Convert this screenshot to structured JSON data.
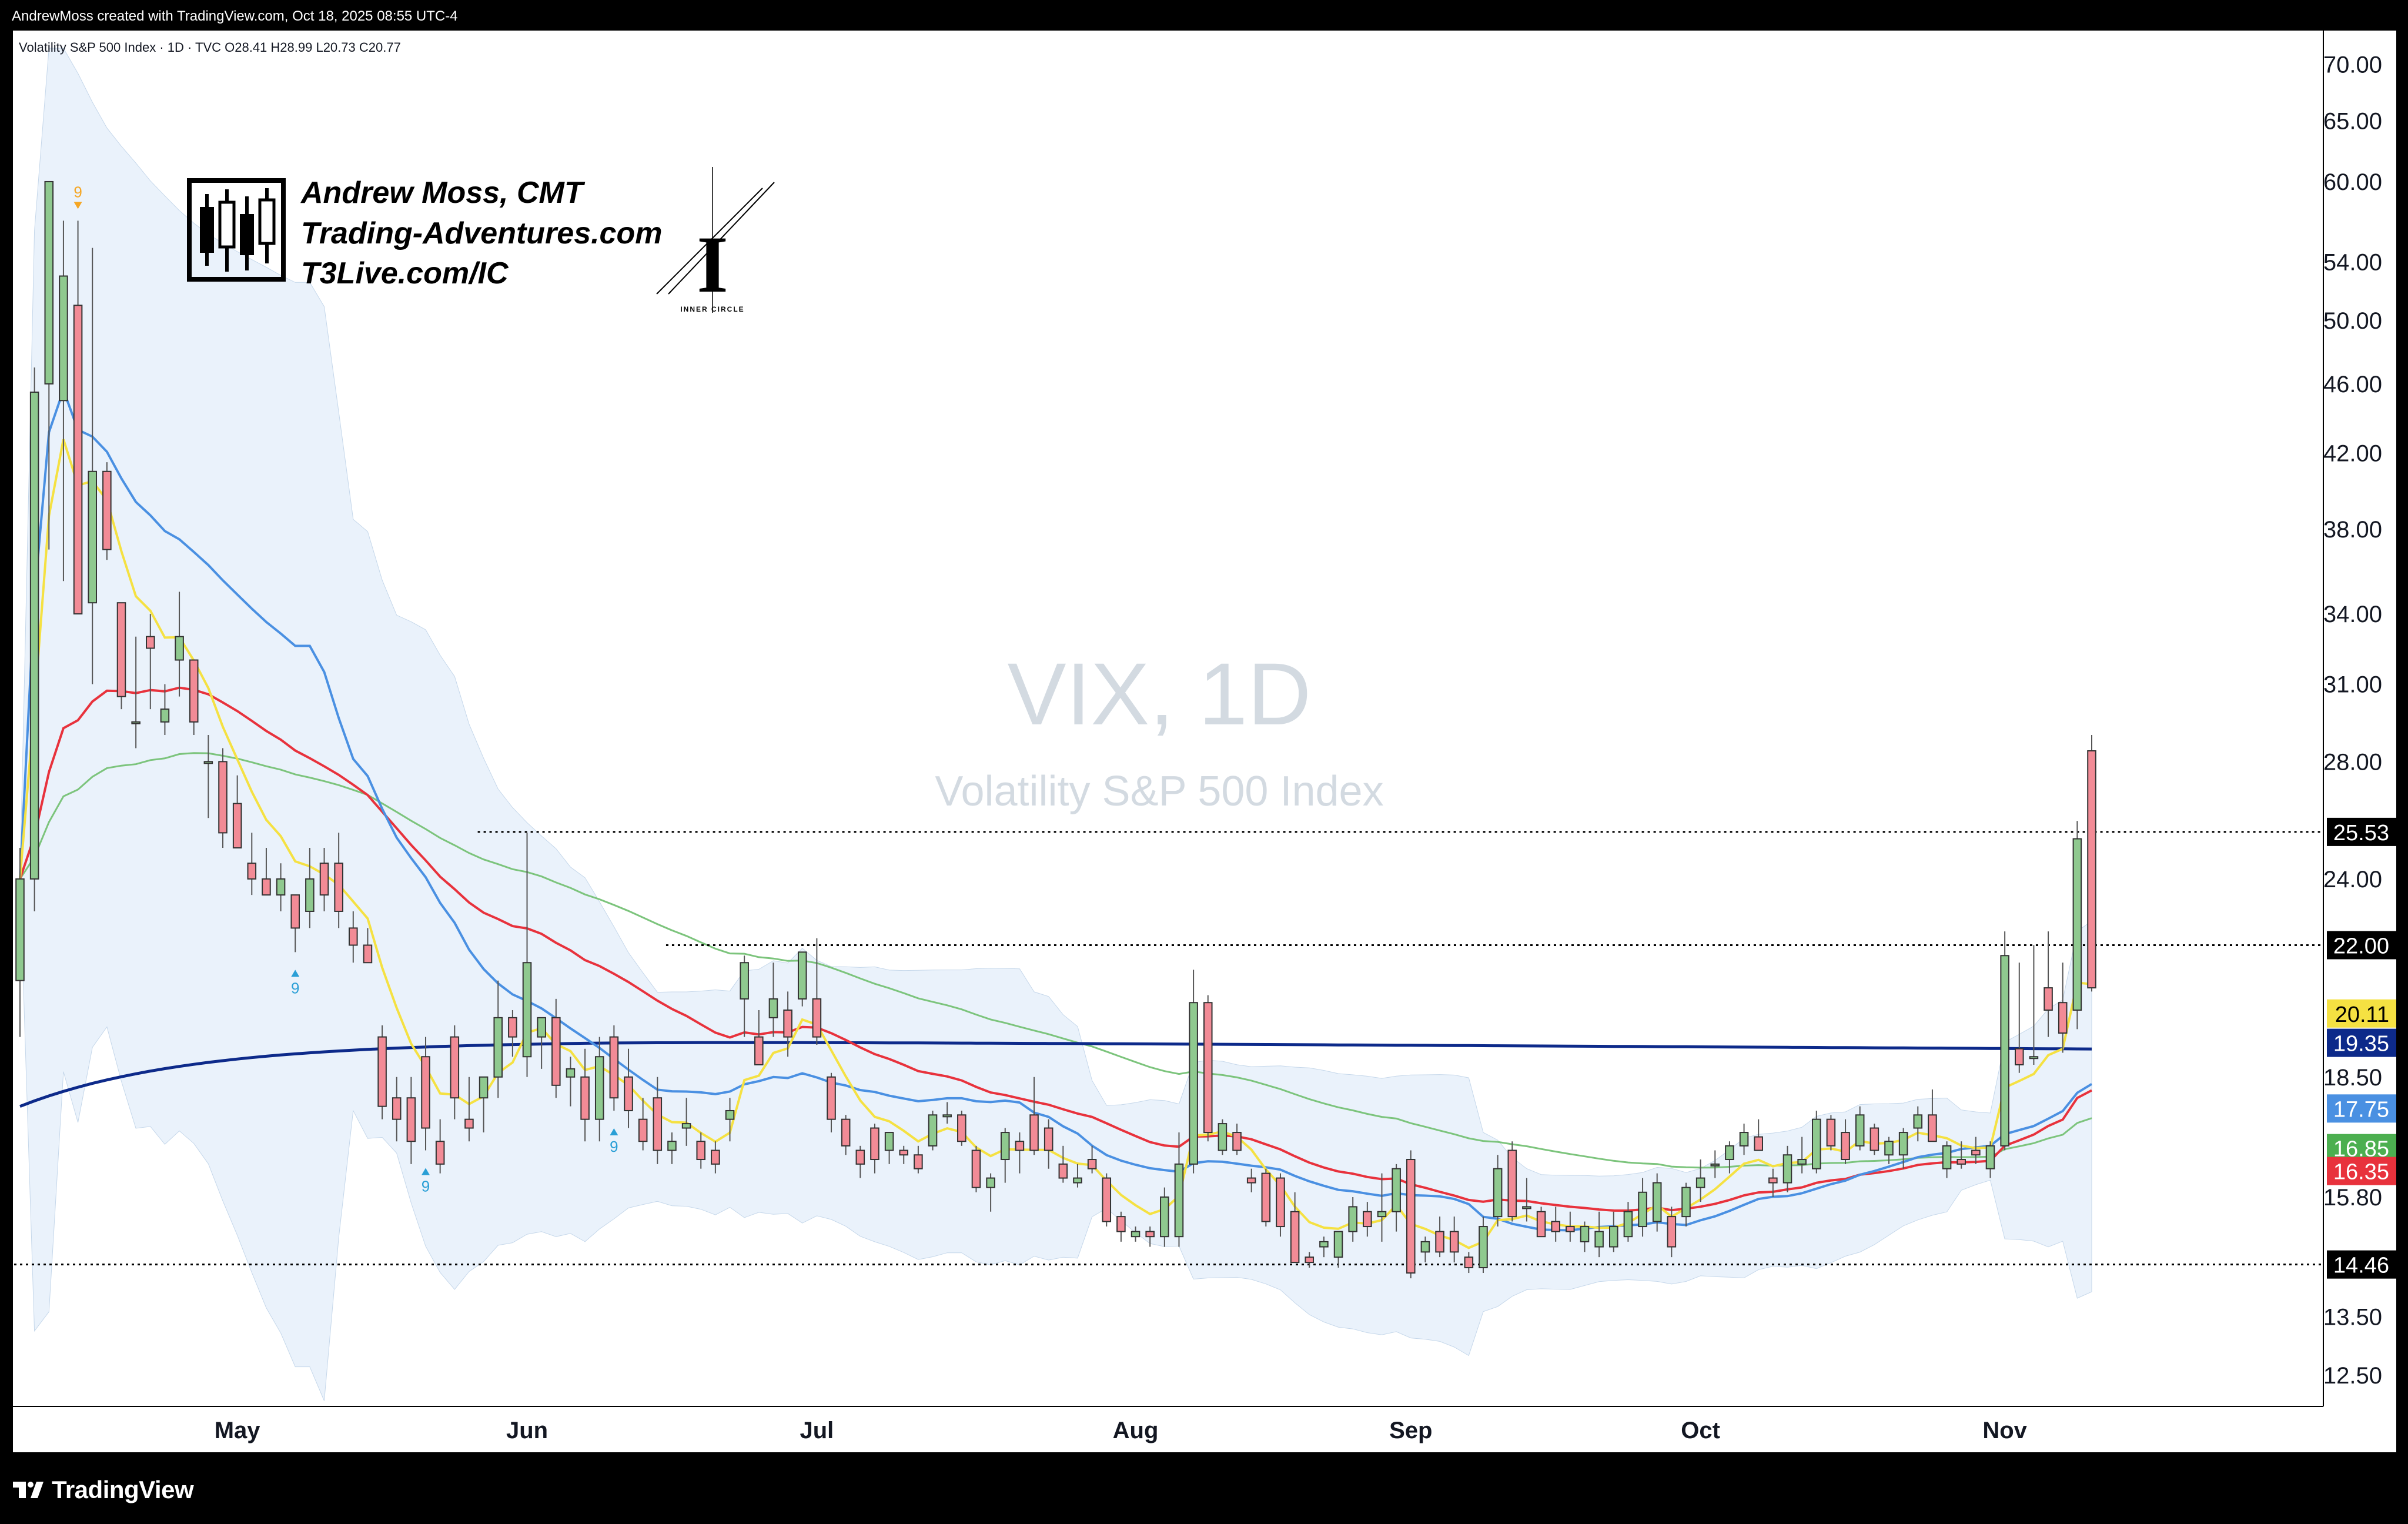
{
  "header": {
    "caption": "AndrewMoss created with TradingView.com, Oct 18, 2025 08:55 UTC-4"
  },
  "legend": {
    "line": "Volatility S&P 500 Index · 1D · TVC  O28.41  H28.99  L20.73  C20.77"
  },
  "watermark": {
    "symbol": "VIX, 1D",
    "name": "Volatility S&P 500 Index"
  },
  "branding": {
    "line1": "Andrew Moss, CMT",
    "line2": "Trading-Adventures.com",
    "line3": "T3Live.com/IC",
    "inner_circle_letter": "I",
    "inner_circle_label": "INNER CIRCLE"
  },
  "footer": {
    "brand": "TradingView"
  },
  "colors": {
    "up_candle": "#8fc98f",
    "down_candle": "#f28b96",
    "ema_yellow": "#f5e142",
    "ma_blue": "#4a90e2",
    "ma_red": "#e8323c",
    "ma_green": "#7cc47c",
    "ma_navy": "#0d2a8a",
    "band_fill": "#eaf2fb",
    "seq_up": "#2a9fd6",
    "seq_down": "#f5a623"
  },
  "chart_data": {
    "type": "candlestick",
    "symbol": "VIX",
    "timeframe": "1D",
    "scale": "log",
    "ylim": [
      12.0,
      71.5
    ],
    "y_ticks": [
      "70.00",
      "65.00",
      "60.00",
      "54.00",
      "50.00",
      "46.00",
      "42.00",
      "38.00",
      "34.00",
      "31.00",
      "28.00",
      "24.00",
      "18.50",
      "15.80",
      "13.50",
      "12.50"
    ],
    "x_labels": [
      {
        "label": "May",
        "index": 15
      },
      {
        "label": "Jun",
        "index": 35
      },
      {
        "label": "Jul",
        "index": 55
      },
      {
        "label": "Aug",
        "index": 77
      },
      {
        "label": "Sep",
        "index": 96
      },
      {
        "label": "Oct",
        "index": 116
      },
      {
        "label": "Nov",
        "index": 137
      }
    ],
    "price_tags": [
      {
        "value": "25.53",
        "bg": "#000000",
        "fg": "#ffffff"
      },
      {
        "value": "22.00",
        "bg": "#000000",
        "fg": "#ffffff"
      },
      {
        "value": "20.11",
        "bg": "#f5e142",
        "fg": "#000000"
      },
      {
        "value": "19.35",
        "bg": "#0d2a8a",
        "fg": "#ffffff"
      },
      {
        "value": "17.75",
        "bg": "#4a90e2",
        "fg": "#ffffff"
      },
      {
        "value": "16.85",
        "bg": "#4caf50",
        "fg": "#ffffff"
      },
      {
        "value": "16.35",
        "bg": "#e8323c",
        "fg": "#ffffff"
      },
      {
        "value": "14.46",
        "bg": "#000000",
        "fg": "#ffffff"
      }
    ],
    "horizontal_levels": [
      {
        "value": 25.53,
        "from_index": 32
      },
      {
        "value": 22.0,
        "from_index": 45
      },
      {
        "value": 14.46,
        "from_index": 0
      }
    ],
    "sequential_marks": [
      {
        "index": 4,
        "label": "9",
        "dir": "down"
      },
      {
        "index": 19,
        "label": "9",
        "dir": "up"
      },
      {
        "index": 28,
        "label": "9",
        "dir": "up"
      },
      {
        "index": 41,
        "label": "9",
        "dir": "up"
      }
    ],
    "candles": [
      {
        "o": 21.0,
        "h": 25.0,
        "l": 19.5,
        "c": 24.0
      },
      {
        "o": 24.0,
        "h": 47.0,
        "l": 23.0,
        "c": 45.5
      },
      {
        "o": 46.0,
        "h": 60.0,
        "l": 37.0,
        "c": 60.0
      },
      {
        "o": 45.0,
        "h": 57.0,
        "l": 35.5,
        "c": 53.0
      },
      {
        "o": 51.0,
        "h": 57.0,
        "l": 34.0,
        "c": 34.0
      },
      {
        "o": 34.5,
        "h": 55.0,
        "l": 31.0,
        "c": 41.0
      },
      {
        "o": 41.0,
        "h": 41.5,
        "l": 36.5,
        "c": 37.0
      },
      {
        "o": 34.5,
        "h": 34.5,
        "l": 30.0,
        "c": 30.5
      },
      {
        "o": 29.5,
        "h": 33.0,
        "l": 28.5,
        "c": 29.5
      },
      {
        "o": 33.0,
        "h": 34.0,
        "l": 30.0,
        "c": 32.5
      },
      {
        "o": 29.5,
        "h": 31.0,
        "l": 29.0,
        "c": 30.0
      },
      {
        "o": 32.0,
        "h": 35.0,
        "l": 30.5,
        "c": 33.0
      },
      {
        "o": 32.0,
        "h": 32.0,
        "l": 29.0,
        "c": 29.5
      },
      {
        "o": 28.0,
        "h": 29.0,
        "l": 26.0,
        "c": 28.0
      },
      {
        "o": 28.0,
        "h": 28.5,
        "l": 25.0,
        "c": 25.5
      },
      {
        "o": 26.5,
        "h": 27.5,
        "l": 25.0,
        "c": 25.0
      },
      {
        "o": 24.5,
        "h": 25.5,
        "l": 23.5,
        "c": 24.0
      },
      {
        "o": 24.0,
        "h": 25.0,
        "l": 23.5,
        "c": 23.5
      },
      {
        "o": 23.5,
        "h": 24.5,
        "l": 23.0,
        "c": 24.0
      },
      {
        "o": 23.5,
        "h": 23.5,
        "l": 21.8,
        "c": 22.5
      },
      {
        "o": 23.0,
        "h": 25.0,
        "l": 22.5,
        "c": 24.0
      },
      {
        "o": 24.5,
        "h": 25.0,
        "l": 23.0,
        "c": 23.5
      },
      {
        "o": 24.5,
        "h": 25.5,
        "l": 22.5,
        "c": 23.0
      },
      {
        "o": 22.5,
        "h": 23.0,
        "l": 21.5,
        "c": 22.0
      },
      {
        "o": 22.0,
        "h": 22.5,
        "l": 21.5,
        "c": 21.5
      },
      {
        "o": 19.5,
        "h": 19.8,
        "l": 17.5,
        "c": 17.8
      },
      {
        "o": 18.0,
        "h": 18.5,
        "l": 17.0,
        "c": 17.5
      },
      {
        "o": 18.0,
        "h": 18.5,
        "l": 16.5,
        "c": 17.0
      },
      {
        "o": 19.0,
        "h": 19.5,
        "l": 16.8,
        "c": 17.3
      },
      {
        "o": 17.0,
        "h": 17.5,
        "l": 16.3,
        "c": 16.5
      },
      {
        "o": 19.5,
        "h": 19.8,
        "l": 17.5,
        "c": 18.0
      },
      {
        "o": 17.5,
        "h": 18.5,
        "l": 17.0,
        "c": 17.3
      },
      {
        "o": 18.0,
        "h": 18.5,
        "l": 17.2,
        "c": 18.5
      },
      {
        "o": 18.5,
        "h": 21.0,
        "l": 18.0,
        "c": 20.0
      },
      {
        "o": 20.0,
        "h": 20.2,
        "l": 19.0,
        "c": 19.5
      },
      {
        "o": 19.0,
        "h": 25.5,
        "l": 18.5,
        "c": 21.5
      },
      {
        "o": 19.5,
        "h": 20.0,
        "l": 18.7,
        "c": 20.0
      },
      {
        "o": 20.0,
        "h": 20.5,
        "l": 18.0,
        "c": 18.3
      },
      {
        "o": 18.5,
        "h": 19.0,
        "l": 17.8,
        "c": 18.7
      },
      {
        "o": 18.5,
        "h": 19.2,
        "l": 17.0,
        "c": 17.5
      },
      {
        "o": 17.5,
        "h": 19.5,
        "l": 17.0,
        "c": 19.0
      },
      {
        "o": 19.5,
        "h": 19.8,
        "l": 17.7,
        "c": 18.0
      },
      {
        "o": 18.5,
        "h": 19.2,
        "l": 17.3,
        "c": 17.7
      },
      {
        "o": 17.5,
        "h": 18.0,
        "l": 16.8,
        "c": 17.0
      },
      {
        "o": 18.0,
        "h": 18.5,
        "l": 16.5,
        "c": 16.8
      },
      {
        "o": 16.8,
        "h": 17.2,
        "l": 16.5,
        "c": 17.0
      },
      {
        "o": 17.3,
        "h": 18.0,
        "l": 16.9,
        "c": 17.4
      },
      {
        "o": 17.0,
        "h": 17.2,
        "l": 16.4,
        "c": 16.6
      },
      {
        "o": 16.8,
        "h": 17.0,
        "l": 16.3,
        "c": 16.5
      },
      {
        "o": 17.5,
        "h": 18.0,
        "l": 17.0,
        "c": 17.7
      },
      {
        "o": 20.5,
        "h": 21.7,
        "l": 19.5,
        "c": 21.5
      },
      {
        "o": 19.5,
        "h": 20.2,
        "l": 18.8,
        "c": 18.8
      },
      {
        "o": 20.0,
        "h": 21.5,
        "l": 19.5,
        "c": 20.5
      },
      {
        "o": 20.2,
        "h": 20.7,
        "l": 19.0,
        "c": 19.5
      },
      {
        "o": 20.5,
        "h": 21.8,
        "l": 20.3,
        "c": 21.8
      },
      {
        "o": 20.5,
        "h": 22.2,
        "l": 19.3,
        "c": 19.5
      },
      {
        "o": 18.5,
        "h": 18.6,
        "l": 17.2,
        "c": 17.5
      },
      {
        "o": 17.5,
        "h": 17.6,
        "l": 16.7,
        "c": 16.9
      },
      {
        "o": 16.8,
        "h": 16.9,
        "l": 16.2,
        "c": 16.5
      },
      {
        "o": 17.3,
        "h": 17.4,
        "l": 16.3,
        "c": 16.6
      },
      {
        "o": 16.8,
        "h": 17.2,
        "l": 16.5,
        "c": 17.2
      },
      {
        "o": 16.8,
        "h": 16.9,
        "l": 16.5,
        "c": 16.7
      },
      {
        "o": 16.7,
        "h": 16.9,
        "l": 16.3,
        "c": 16.4
      },
      {
        "o": 16.9,
        "h": 17.7,
        "l": 16.8,
        "c": 17.6
      },
      {
        "o": 17.6,
        "h": 17.9,
        "l": 17.4,
        "c": 17.6
      },
      {
        "o": 17.6,
        "h": 17.7,
        "l": 16.9,
        "c": 17.0
      },
      {
        "o": 16.8,
        "h": 16.9,
        "l": 15.9,
        "c": 16.0
      },
      {
        "o": 16.0,
        "h": 16.3,
        "l": 15.5,
        "c": 16.2
      },
      {
        "o": 16.6,
        "h": 17.3,
        "l": 16.1,
        "c": 17.2
      },
      {
        "o": 17.0,
        "h": 17.2,
        "l": 16.3,
        "c": 16.8
      },
      {
        "o": 17.6,
        "h": 18.5,
        "l": 16.7,
        "c": 16.8
      },
      {
        "o": 17.3,
        "h": 17.5,
        "l": 16.4,
        "c": 16.8
      },
      {
        "o": 16.5,
        "h": 16.9,
        "l": 16.1,
        "c": 16.2
      },
      {
        "o": 16.1,
        "h": 16.5,
        "l": 16.0,
        "c": 16.2
      },
      {
        "o": 16.6,
        "h": 16.9,
        "l": 16.3,
        "c": 16.4
      },
      {
        "o": 16.2,
        "h": 16.3,
        "l": 15.2,
        "c": 15.3
      },
      {
        "o": 15.4,
        "h": 15.5,
        "l": 14.9,
        "c": 15.1
      },
      {
        "o": 15.0,
        "h": 15.2,
        "l": 14.9,
        "c": 15.1
      },
      {
        "o": 15.1,
        "h": 15.2,
        "l": 14.8,
        "c": 15.0
      },
      {
        "o": 15.0,
        "h": 16.0,
        "l": 14.8,
        "c": 15.8
      },
      {
        "o": 15.0,
        "h": 17.2,
        "l": 14.8,
        "c": 16.5
      },
      {
        "o": 16.5,
        "h": 21.3,
        "l": 16.3,
        "c": 20.4
      },
      {
        "o": 20.4,
        "h": 20.6,
        "l": 17.0,
        "c": 17.2
      },
      {
        "o": 16.8,
        "h": 17.5,
        "l": 16.7,
        "c": 17.4
      },
      {
        "o": 17.2,
        "h": 17.4,
        "l": 16.7,
        "c": 16.8
      },
      {
        "o": 16.2,
        "h": 16.4,
        "l": 15.9,
        "c": 16.1
      },
      {
        "o": 16.3,
        "h": 16.4,
        "l": 15.2,
        "c": 15.3
      },
      {
        "o": 16.2,
        "h": 16.3,
        "l": 15.0,
        "c": 15.2
      },
      {
        "o": 15.5,
        "h": 15.9,
        "l": 14.5,
        "c": 14.5
      },
      {
        "o": 14.6,
        "h": 14.7,
        "l": 14.4,
        "c": 14.5
      },
      {
        "o": 14.8,
        "h": 15.0,
        "l": 14.6,
        "c": 14.9
      },
      {
        "o": 14.6,
        "h": 15.1,
        "l": 14.4,
        "c": 15.1
      },
      {
        "o": 15.1,
        "h": 15.8,
        "l": 14.9,
        "c": 15.6
      },
      {
        "o": 15.5,
        "h": 15.7,
        "l": 15.0,
        "c": 15.2
      },
      {
        "o": 15.4,
        "h": 16.3,
        "l": 14.9,
        "c": 15.5
      },
      {
        "o": 15.5,
        "h": 16.5,
        "l": 15.1,
        "c": 16.4
      },
      {
        "o": 16.6,
        "h": 16.8,
        "l": 14.2,
        "c": 14.3
      },
      {
        "o": 14.7,
        "h": 15.0,
        "l": 14.5,
        "c": 14.9
      },
      {
        "o": 15.1,
        "h": 15.4,
        "l": 14.6,
        "c": 14.7
      },
      {
        "o": 15.1,
        "h": 15.4,
        "l": 14.5,
        "c": 14.7
      },
      {
        "o": 14.6,
        "h": 14.7,
        "l": 14.3,
        "c": 14.4
      },
      {
        "o": 14.4,
        "h": 15.4,
        "l": 14.3,
        "c": 15.2
      },
      {
        "o": 15.4,
        "h": 16.7,
        "l": 15.2,
        "c": 16.4
      },
      {
        "o": 16.8,
        "h": 17.0,
        "l": 15.3,
        "c": 15.4
      },
      {
        "o": 15.6,
        "h": 16.2,
        "l": 15.3,
        "c": 15.6
      },
      {
        "o": 15.5,
        "h": 15.6,
        "l": 15.0,
        "c": 15.0
      },
      {
        "o": 15.3,
        "h": 15.6,
        "l": 14.9,
        "c": 15.1
      },
      {
        "o": 15.2,
        "h": 15.5,
        "l": 14.9,
        "c": 15.1
      },
      {
        "o": 14.9,
        "h": 15.3,
        "l": 14.7,
        "c": 15.2
      },
      {
        "o": 14.8,
        "h": 15.5,
        "l": 14.6,
        "c": 15.1
      },
      {
        "o": 14.8,
        "h": 15.5,
        "l": 14.7,
        "c": 15.2
      },
      {
        "o": 15.0,
        "h": 15.7,
        "l": 14.9,
        "c": 15.5
      },
      {
        "o": 15.2,
        "h": 16.2,
        "l": 15.0,
        "c": 15.9
      },
      {
        "o": 15.3,
        "h": 16.3,
        "l": 15.1,
        "c": 16.1
      },
      {
        "o": 15.4,
        "h": 15.6,
        "l": 14.6,
        "c": 14.8
      },
      {
        "o": 15.4,
        "h": 16.1,
        "l": 15.2,
        "c": 16.0
      },
      {
        "o": 16.0,
        "h": 16.6,
        "l": 15.7,
        "c": 16.2
      },
      {
        "o": 16.5,
        "h": 16.8,
        "l": 16.2,
        "c": 16.5
      },
      {
        "o": 16.6,
        "h": 17.0,
        "l": 16.3,
        "c": 16.9
      },
      {
        "o": 16.9,
        "h": 17.4,
        "l": 16.7,
        "c": 17.2
      },
      {
        "o": 17.1,
        "h": 17.5,
        "l": 16.8,
        "c": 16.8
      },
      {
        "o": 16.2,
        "h": 16.4,
        "l": 15.8,
        "c": 16.1
      },
      {
        "o": 16.1,
        "h": 16.9,
        "l": 15.9,
        "c": 16.7
      },
      {
        "o": 16.5,
        "h": 17.1,
        "l": 16.3,
        "c": 16.6
      },
      {
        "o": 16.4,
        "h": 17.7,
        "l": 16.3,
        "c": 17.5
      },
      {
        "o": 17.5,
        "h": 17.6,
        "l": 16.8,
        "c": 16.9
      },
      {
        "o": 17.2,
        "h": 17.5,
        "l": 16.5,
        "c": 16.6
      },
      {
        "o": 16.9,
        "h": 17.8,
        "l": 16.8,
        "c": 17.6
      },
      {
        "o": 17.3,
        "h": 17.4,
        "l": 16.7,
        "c": 16.8
      },
      {
        "o": 16.7,
        "h": 17.1,
        "l": 16.5,
        "c": 17.0
      },
      {
        "o": 16.7,
        "h": 17.3,
        "l": 16.4,
        "c": 17.2
      },
      {
        "o": 17.3,
        "h": 17.8,
        "l": 17.0,
        "c": 17.6
      },
      {
        "o": 17.6,
        "h": 18.2,
        "l": 17.4,
        "c": 17.0
      },
      {
        "o": 16.4,
        "h": 17.0,
        "l": 16.2,
        "c": 16.9
      },
      {
        "o": 16.6,
        "h": 17.0,
        "l": 16.4,
        "c": 16.5
      },
      {
        "o": 16.8,
        "h": 17.1,
        "l": 16.5,
        "c": 16.7
      },
      {
        "o": 16.4,
        "h": 17.0,
        "l": 16.2,
        "c": 16.9
      },
      {
        "o": 16.9,
        "h": 22.4,
        "l": 16.8,
        "c": 21.7
      },
      {
        "o": 19.2,
        "h": 21.5,
        "l": 18.6,
        "c": 18.8
      },
      {
        "o": 19.0,
        "h": 22.0,
        "l": 18.8,
        "c": 19.0
      },
      {
        "o": 20.8,
        "h": 22.4,
        "l": 19.5,
        "c": 20.2
      },
      {
        "o": 20.4,
        "h": 21.5,
        "l": 19.1,
        "c": 19.6
      },
      {
        "o": 20.2,
        "h": 25.9,
        "l": 19.7,
        "c": 25.3
      },
      {
        "o": 28.4,
        "h": 29.0,
        "l": 20.7,
        "c": 20.8
      }
    ]
  }
}
